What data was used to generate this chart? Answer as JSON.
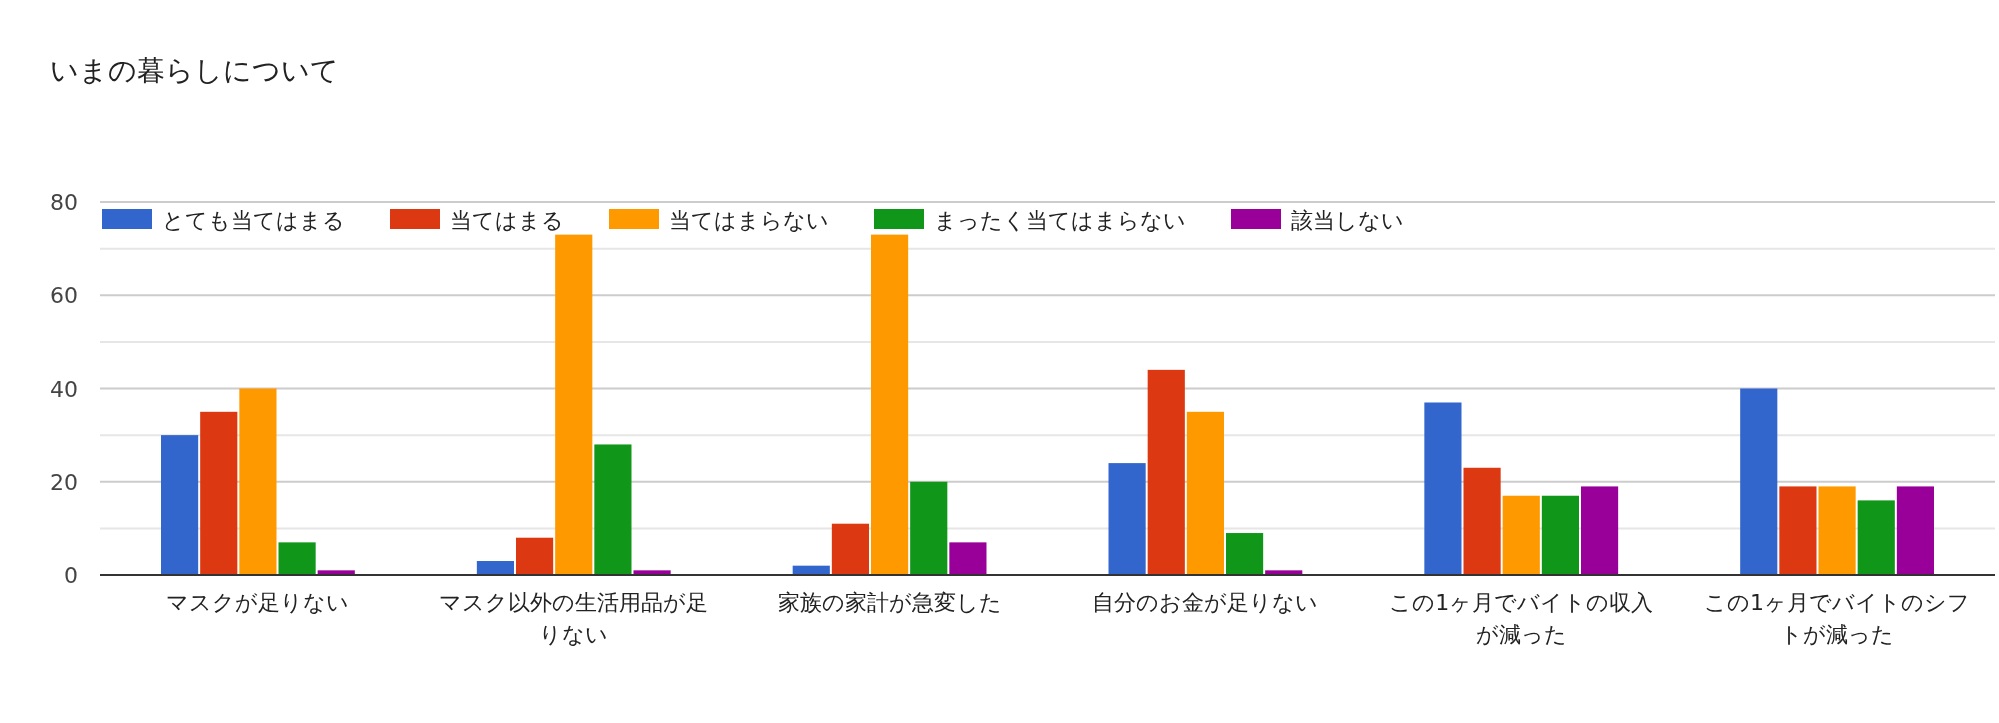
{
  "chart_data": {
    "type": "bar",
    "title": "いまの暮らしについて",
    "categories": [
      "マスクが足りない",
      "マスク以外の生活用品が足りない",
      "家族の家計が急変した",
      "自分のお金が足りない",
      "この1ヶ月でバイトの収入が減った",
      "この1ヶ月でバイトのシフトが減った"
    ],
    "series": [
      {
        "name": "とても当てはまる",
        "color": "#3366cc",
        "values": [
          30,
          3,
          2,
          24,
          37,
          40
        ]
      },
      {
        "name": "当てはまる",
        "color": "#dc3912",
        "values": [
          35,
          8,
          11,
          44,
          23,
          19
        ]
      },
      {
        "name": "当てはまらない",
        "color": "#ff9900",
        "values": [
          40,
          73,
          73,
          35,
          17,
          19
        ]
      },
      {
        "name": "まったく当てはまらない",
        "color": "#109618",
        "values": [
          7,
          28,
          20,
          9,
          17,
          16
        ]
      },
      {
        "name": "該当しない",
        "color": "#990099",
        "values": [
          1,
          1,
          7,
          1,
          19,
          19
        ]
      }
    ],
    "ylim": [
      0,
      80
    ],
    "yticks": [
      0,
      {
        "value": 10,
        "label": null
      },
      20,
      {
        "value": 30,
        "label": null
      },
      40,
      {
        "value": 50,
        "label": null
      },
      60,
      {
        "value": 70,
        "label": null
      },
      80
    ],
    "grid": true,
    "legend": "top left"
  }
}
